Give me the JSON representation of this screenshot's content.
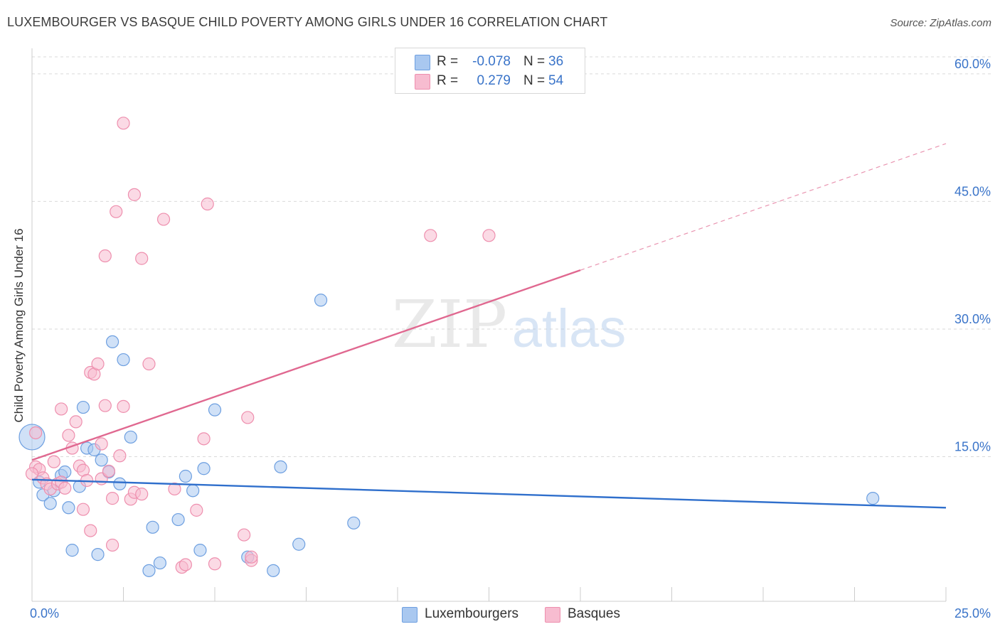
{
  "header": {
    "title": "LUXEMBOURGER VS BASQUE CHILD POVERTY AMONG GIRLS UNDER 16 CORRELATION CHART",
    "source": "Source: ZipAtlas.com"
  },
  "watermark": {
    "zip": "ZIP",
    "atlas": "atlas"
  },
  "colors": {
    "blue_fill": "#a9c8f0",
    "blue_stroke": "#6d9fe0",
    "blue_line": "#2f6fcc",
    "pink_fill": "#f7bcd0",
    "pink_stroke": "#ee8fae",
    "pink_line": "#e06890",
    "tick_label": "#3a74c9",
    "grid": "#d9d9d9"
  },
  "legend": {
    "rows": [
      {
        "r_label": "R =",
        "r_value": "-0.078",
        "n_label": "N =",
        "n_value": "36"
      },
      {
        "r_label": "R =",
        "r_value": "0.279",
        "n_label": "N =",
        "n_value": "54"
      }
    ]
  },
  "bottom_legend": {
    "items": [
      "Luxembourgers",
      "Basques"
    ]
  },
  "chart_data": {
    "type": "scatter",
    "title": "LUXEMBOURGER VS BASQUE CHILD POVERTY AMONG GIRLS UNDER 16 CORRELATION CHART",
    "xlabel": "",
    "ylabel": "Child Poverty Among Girls Under 16",
    "xlim": [
      0,
      25
    ],
    "ylim": [
      0,
      63
    ],
    "x_tick_labels": [
      {
        "value": 0,
        "label": "0.0%"
      },
      {
        "value": 25,
        "label": "25.0%"
      }
    ],
    "x_minor_ticks": [
      2.5,
      5,
      7.5,
      10,
      12.5,
      15,
      17.5,
      20,
      22.5,
      25
    ],
    "y_ticks": [
      {
        "value": 15,
        "label": "15.0%"
      },
      {
        "value": 30,
        "label": "30.0%"
      },
      {
        "value": 45,
        "label": "45.0%"
      },
      {
        "value": 60,
        "label": "60.0%"
      }
    ],
    "grid": true,
    "legend_position": "top-center",
    "series": [
      {
        "name": "Luxembourgers",
        "color": "#a9c8f0",
        "trend": {
          "x0": 0,
          "y0": 12.3,
          "x1": 25,
          "y1": 9.0,
          "dashed_from": null
        },
        "points": [
          [
            0.0,
            17.3
          ],
          [
            0.2,
            12.0
          ],
          [
            0.3,
            10.5
          ],
          [
            0.5,
            9.5
          ],
          [
            0.6,
            11.0
          ],
          [
            0.8,
            12.8
          ],
          [
            0.9,
            13.2
          ],
          [
            1.0,
            9.0
          ],
          [
            1.1,
            4.0
          ],
          [
            1.3,
            11.5
          ],
          [
            1.4,
            20.8
          ],
          [
            1.5,
            16.0
          ],
          [
            1.7,
            15.8
          ],
          [
            1.8,
            3.5
          ],
          [
            1.9,
            14.6
          ],
          [
            2.1,
            13.2
          ],
          [
            2.2,
            28.5
          ],
          [
            2.4,
            11.8
          ],
          [
            2.5,
            26.4
          ],
          [
            2.7,
            17.3
          ],
          [
            3.2,
            1.6
          ],
          [
            3.3,
            6.7
          ],
          [
            3.5,
            2.5
          ],
          [
            4.0,
            7.6
          ],
          [
            4.2,
            12.7
          ],
          [
            4.4,
            11.0
          ],
          [
            4.6,
            4.0
          ],
          [
            4.7,
            13.6
          ],
          [
            5.0,
            20.5
          ],
          [
            5.9,
            3.2
          ],
          [
            6.6,
            1.6
          ],
          [
            6.8,
            13.8
          ],
          [
            7.3,
            4.7
          ],
          [
            7.9,
            33.4
          ],
          [
            8.8,
            7.2
          ],
          [
            23.0,
            10.1
          ]
        ]
      },
      {
        "name": "Basques",
        "color": "#f7bcd0",
        "trend": {
          "x0": 0,
          "y0": 14.6,
          "x1": 25,
          "y1": 51.8,
          "dashed_from": 15.0
        },
        "points": [
          [
            0.1,
            17.8
          ],
          [
            0.1,
            13.8
          ],
          [
            0.2,
            13.5
          ],
          [
            0.3,
            12.5
          ],
          [
            0.4,
            11.8
          ],
          [
            0.5,
            11.2
          ],
          [
            0.6,
            14.4
          ],
          [
            0.7,
            11.8
          ],
          [
            0.8,
            12.0
          ],
          [
            0.8,
            20.6
          ],
          [
            0.9,
            11.3
          ],
          [
            1.0,
            17.5
          ],
          [
            1.1,
            16.0
          ],
          [
            1.2,
            19.1
          ],
          [
            1.3,
            13.9
          ],
          [
            1.4,
            13.4
          ],
          [
            1.4,
            8.8
          ],
          [
            1.5,
            12.2
          ],
          [
            1.6,
            6.3
          ],
          [
            1.6,
            24.9
          ],
          [
            1.7,
            24.7
          ],
          [
            1.8,
            25.9
          ],
          [
            1.9,
            16.5
          ],
          [
            1.9,
            12.4
          ],
          [
            2.0,
            21.0
          ],
          [
            2.0,
            38.6
          ],
          [
            2.1,
            13.3
          ],
          [
            2.2,
            10.1
          ],
          [
            2.2,
            4.6
          ],
          [
            2.3,
            43.8
          ],
          [
            2.4,
            15.1
          ],
          [
            2.5,
            54.2
          ],
          [
            2.5,
            20.9
          ],
          [
            2.7,
            10.0
          ],
          [
            2.8,
            10.8
          ],
          [
            2.8,
            45.8
          ],
          [
            3.0,
            10.6
          ],
          [
            3.0,
            38.3
          ],
          [
            3.2,
            25.9
          ],
          [
            3.6,
            42.9
          ],
          [
            3.9,
            11.2
          ],
          [
            4.1,
            2.0
          ],
          [
            4.2,
            2.3
          ],
          [
            4.5,
            8.7
          ],
          [
            4.7,
            17.1
          ],
          [
            4.8,
            44.7
          ],
          [
            5.0,
            2.4
          ],
          [
            5.8,
            5.8
          ],
          [
            5.9,
            19.6
          ],
          [
            6.0,
            2.8
          ],
          [
            6.0,
            3.2
          ],
          [
            10.9,
            41.0
          ],
          [
            12.5,
            41.0
          ],
          [
            0.0,
            13.0
          ]
        ]
      }
    ]
  }
}
